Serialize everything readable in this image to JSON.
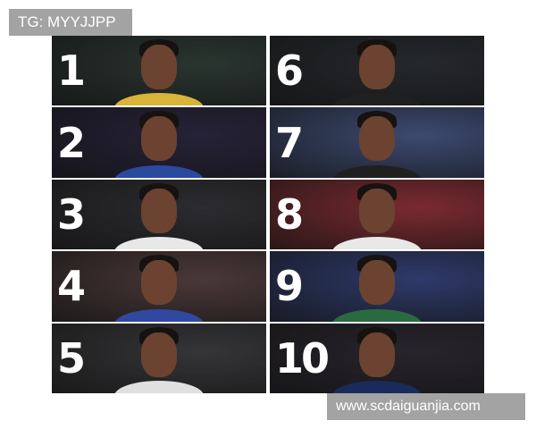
{
  "watermarks": {
    "top_left": "TG: MYYJJPP",
    "bottom_right": "www.scdaiguanjia.com"
  },
  "panels": [
    {
      "rank": "1",
      "bg": "#2a3530",
      "jersey": "#d8b43a"
    },
    {
      "rank": "2",
      "bg": "#262238",
      "jersey": "#2a4aa0"
    },
    {
      "rank": "3",
      "bg": "#2c2c30",
      "jersey": "#e8e8e8"
    },
    {
      "rank": "4",
      "bg": "#4a3838",
      "jersey": "#3048a0"
    },
    {
      "rank": "5",
      "bg": "#353538",
      "jersey": "#e0e0e0"
    },
    {
      "rank": "6",
      "bg": "#25282c",
      "jersey": "#202020"
    },
    {
      "rank": "7",
      "bg": "#3c4a70",
      "jersey": "#202020"
    },
    {
      "rank": "8",
      "bg": "#7a2a30",
      "jersey": "#e8e8e8"
    },
    {
      "rank": "9",
      "bg": "#2e3a6a",
      "jersey": "#2a6a40"
    },
    {
      "rank": "10",
      "bg": "#28242c",
      "jersey": "#1a2a5a"
    }
  ]
}
